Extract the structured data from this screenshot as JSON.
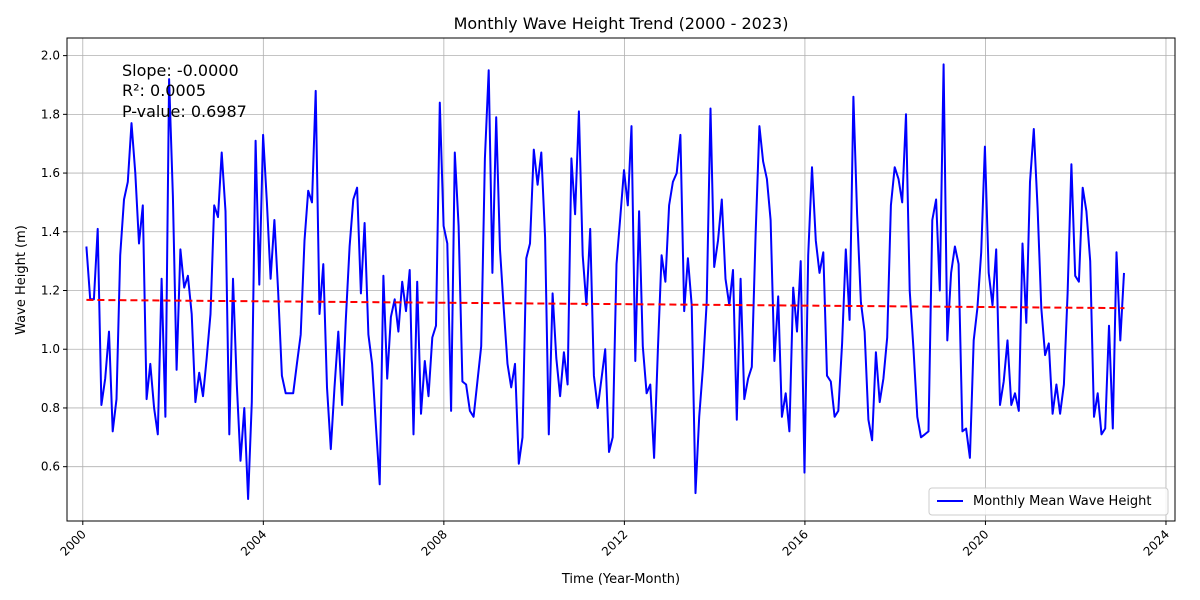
{
  "chart_data": {
    "type": "line",
    "title": "Monthly Wave Height Trend (2000 - 2023)",
    "xlabel": "Time (Year-Month)",
    "ylabel": "Wave Height (m)",
    "xlim": [
      1999.65,
      2024.2
    ],
    "ylim": [
      0.415,
      2.06
    ],
    "x_ticks": [
      2000,
      2004,
      2008,
      2012,
      2016,
      2020,
      2024
    ],
    "x_tick_labels": [
      "2000",
      "2004",
      "2008",
      "2012",
      "2016",
      "2020",
      "2024"
    ],
    "y_ticks": [
      0.6,
      0.8,
      1.0,
      1.2,
      1.4,
      1.6,
      1.8,
      2.0
    ],
    "y_tick_labels": [
      "0.6",
      "0.8",
      "1.0",
      "1.2",
      "1.4",
      "1.6",
      "1.8",
      "2.0"
    ],
    "grid": true,
    "legend_position": "lower-right",
    "annotations": [
      "Slope: -0.0000",
      "R²: 0.0005",
      "P-value: 0.6987"
    ],
    "series": [
      {
        "name": "Monthly Mean Wave Height",
        "color": "#0000ff",
        "x_start": 2000.08,
        "x_step": 0.0833,
        "values": [
          1.35,
          1.17,
          1.17,
          1.41,
          0.81,
          0.9,
          1.06,
          0.72,
          0.83,
          1.32,
          1.51,
          1.57,
          1.77,
          1.6,
          1.36,
          1.49,
          0.83,
          0.95,
          0.8,
          0.71,
          1.24,
          0.77,
          1.92,
          1.52,
          0.93,
          1.34,
          1.21,
          1.25,
          1.12,
          0.82,
          0.92,
          0.84,
          0.97,
          1.12,
          1.49,
          1.45,
          1.67,
          1.47,
          0.71,
          1.24,
          0.88,
          0.62,
          0.8,
          0.49,
          0.82,
          1.71,
          1.22,
          1.73,
          1.5,
          1.24,
          1.44,
          1.2,
          0.91,
          0.85,
          0.85,
          0.85,
          0.95,
          1.05,
          1.37,
          1.54,
          1.5,
          1.88,
          1.12,
          1.29,
          0.87,
          0.66,
          0.87,
          1.06,
          0.81,
          1.1,
          1.35,
          1.51,
          1.55,
          1.19,
          1.43,
          1.05,
          0.95,
          0.74,
          0.54,
          1.25,
          0.9,
          1.11,
          1.17,
          1.06,
          1.23,
          1.13,
          1.27,
          0.71,
          1.23,
          0.78,
          0.96,
          0.84,
          1.04,
          1.08,
          1.84,
          1.42,
          1.36,
          0.79,
          1.67,
          1.42,
          0.89,
          0.88,
          0.79,
          0.77,
          0.89,
          1.01,
          1.65,
          1.95,
          1.26,
          1.79,
          1.34,
          1.14,
          0.95,
          0.87,
          0.95,
          0.61,
          0.7,
          1.31,
          1.36,
          1.68,
          1.56,
          1.67,
          1.38,
          0.71,
          1.19,
          0.97,
          0.84,
          0.99,
          0.88,
          1.65,
          1.46,
          1.81,
          1.32,
          1.15,
          1.41,
          0.91,
          0.8,
          0.9,
          1.0,
          0.65,
          0.7,
          1.29,
          1.45,
          1.61,
          1.49,
          1.76,
          0.96,
          1.47,
          1.01,
          0.85,
          0.88,
          0.63,
          1.0,
          1.32,
          1.23,
          1.49,
          1.57,
          1.6,
          1.73,
          1.13,
          1.31,
          1.15,
          0.51,
          0.77,
          0.94,
          1.16,
          1.82,
          1.28,
          1.37,
          1.51,
          1.24,
          1.15,
          1.27,
          0.76,
          1.24,
          0.83,
          0.9,
          0.94,
          1.39,
          1.76,
          1.64,
          1.58,
          1.44,
          0.96,
          1.18,
          0.77,
          0.85,
          0.72,
          1.21,
          1.06,
          1.3,
          0.58,
          1.32,
          1.62,
          1.37,
          1.26,
          1.33,
          0.91,
          0.89,
          0.77,
          0.79,
          1.02,
          1.34,
          1.1,
          1.86,
          1.46,
          1.16,
          1.06,
          0.76,
          0.69,
          0.99,
          0.82,
          0.9,
          1.04,
          1.49,
          1.62,
          1.58,
          1.5,
          1.8,
          1.2,
          1.0,
          0.77,
          0.7,
          0.71,
          0.72,
          1.44,
          1.51,
          1.2,
          1.97,
          1.03,
          1.26,
          1.35,
          1.29,
          0.72,
          0.73,
          0.63,
          1.03,
          1.14,
          1.33,
          1.69,
          1.26,
          1.15,
          1.34,
          0.81,
          0.89,
          1.03,
          0.81,
          0.85,
          0.79,
          1.36,
          1.09,
          1.57,
          1.75,
          1.48,
          1.14,
          0.98,
          1.02,
          0.78,
          0.88,
          0.78,
          0.88,
          1.19,
          1.63,
          1.25,
          1.23,
          1.55,
          1.47,
          1.3,
          0.77,
          0.85,
          0.71,
          0.73,
          1.08,
          0.73,
          1.33,
          1.03,
          1.26
        ]
      },
      {
        "name": "",
        "style": "dashed",
        "color": "#ff0000",
        "x": [
          2000.08,
          2023.08
        ],
        "values": [
          1.168,
          1.14
        ]
      }
    ]
  }
}
